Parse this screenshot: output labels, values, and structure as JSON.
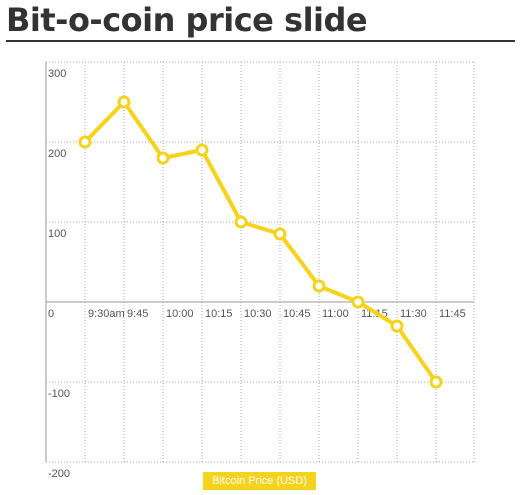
{
  "page": {
    "title": "Bit-o-coin price slide"
  },
  "chart_data": {
    "type": "line",
    "title": "Bit-o-coin price slide",
    "xlabel": "",
    "ylabel": "",
    "categories": [
      "9:30am",
      "9:45",
      "10:00",
      "10:15",
      "10:30",
      "10:45",
      "11:00",
      "11:15",
      "11:30",
      "11:45"
    ],
    "series": [
      {
        "name": "Bitcoin Price (USD)",
        "values": [
          200,
          250,
          180,
          190,
          100,
          85,
          20,
          0,
          -30,
          -100
        ]
      }
    ],
    "ylim": [
      -200,
      300
    ],
    "yticks": [
      300,
      200,
      100,
      0,
      -100,
      -200
    ],
    "ytick_labels": [
      "300",
      "200",
      "100",
      "0",
      "-100",
      "-200"
    ],
    "grid": true,
    "legend_position": "bottom-center",
    "colors": {
      "line": "#f5d31c",
      "marker_fill": "#ffffff",
      "grid": "#aaaaaa",
      "legend_bg": "#f5d31c",
      "legend_text": "#ffffff"
    }
  }
}
